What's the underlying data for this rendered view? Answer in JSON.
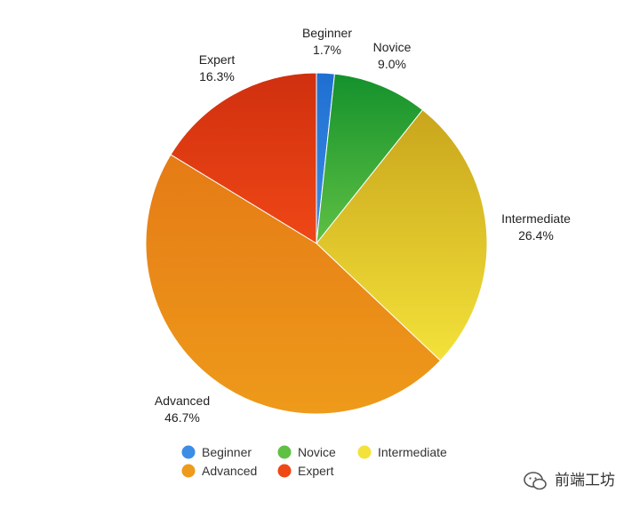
{
  "chart_data": {
    "type": "pie",
    "title": "",
    "slices": [
      {
        "label": "Beginner",
        "value": 1.7,
        "value_label": "1.7%",
        "color": "#1f6fd1",
        "color_light": "#3b8de6"
      },
      {
        "label": "Novice",
        "value": 9.0,
        "value_label": "9.0%",
        "color": "#14912c",
        "color_light": "#5fc044"
      },
      {
        "label": "Intermediate",
        "value": 26.4,
        "value_label": "26.4%",
        "color": "#c9a51c",
        "color_light": "#f3e23a"
      },
      {
        "label": "Advanced",
        "value": 46.7,
        "value_label": "46.7%",
        "color": "#e57b16",
        "color_light": "#ee9a1a"
      },
      {
        "label": "Expert",
        "value": 16.3,
        "value_label": "16.3%",
        "color": "#d0300f",
        "color_light": "#ef4716"
      }
    ],
    "start_angle_deg": 0,
    "direction": "clockwise",
    "legend": {
      "placement": "bottom",
      "items": [
        "Beginner",
        "Novice",
        "Intermediate",
        "Advanced",
        "Expert"
      ]
    }
  },
  "watermark": {
    "text": "前端工坊",
    "icon": "wechat-icon"
  }
}
